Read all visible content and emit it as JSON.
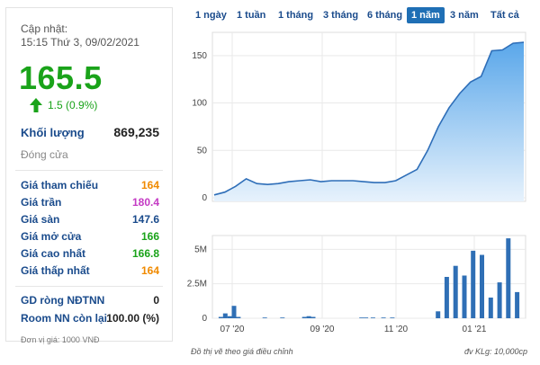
{
  "stock": {
    "updated_label": "Cập nhật:",
    "updated_time": "15:15 Thứ 3, 09/02/2021",
    "price": "165.5",
    "change": "1.5 (0.9%)",
    "volume_label": "Khối lượng",
    "volume_value": "869,235",
    "close_label": "Đóng cửa",
    "price_unit_note": "Đơn vị giá: 1000 VNĐ"
  },
  "details": [
    {
      "label": "Giá tham chiếu",
      "value": "164",
      "color": "#f08a00"
    },
    {
      "label": "Giá trần",
      "value": "180.4",
      "color": "#c43bc4"
    },
    {
      "label": "Giá sàn",
      "value": "147.6",
      "color": "#1a4b8c"
    },
    {
      "label": "Giá mở cửa",
      "value": "166",
      "color": "#1aa31a"
    },
    {
      "label": "Giá cao nhất",
      "value": "166.8",
      "color": "#1aa31a"
    },
    {
      "label": "Giá thấp nhất",
      "value": "164",
      "color": "#f08a00"
    }
  ],
  "foreign": [
    {
      "label": "GD ròng NĐTNN",
      "value": "0",
      "color": "#222222"
    },
    {
      "label": "Room NN còn lại",
      "value": "100.00 (%)",
      "color": "#222222"
    }
  ],
  "tabs": {
    "items": [
      "1 ngày",
      "1 tuần",
      "1 tháng",
      "3 tháng",
      "6 tháng",
      "1 năm",
      "3 năm",
      "Tất cả"
    ],
    "active": "1 năm"
  },
  "footer": {
    "note": "Đồ thị vẽ theo giá điều chỉnh",
    "volume_unit": "đv KLg: 10,000cp"
  },
  "colors": {
    "line": "#2e6eb8",
    "area_top": "#5aa7ea",
    "area_bottom": "#e7f2fc",
    "bar": "#2f6fb5",
    "grid": "#e9e9e9"
  },
  "chart_data": [
    {
      "type": "area",
      "y_ticks": [
        "0",
        "50",
        "100",
        "150"
      ],
      "ylim": [
        0,
        165
      ],
      "points": [
        [
          0,
          3
        ],
        [
          6,
          6
        ],
        [
          12,
          12
        ],
        [
          18,
          20
        ],
        [
          24,
          15
        ],
        [
          30,
          14
        ],
        [
          36,
          15
        ],
        [
          42,
          17
        ],
        [
          48,
          18
        ],
        [
          54,
          19
        ],
        [
          60,
          17
        ],
        [
          66,
          18
        ],
        [
          72,
          18
        ],
        [
          78,
          18
        ],
        [
          84,
          17
        ],
        [
          90,
          16
        ],
        [
          96,
          16
        ],
        [
          102,
          18
        ],
        [
          108,
          24
        ],
        [
          114,
          30
        ],
        [
          120,
          50
        ],
        [
          126,
          75
        ],
        [
          132,
          95
        ],
        [
          138,
          110
        ],
        [
          144,
          122
        ],
        [
          150,
          128
        ],
        [
          156,
          155
        ],
        [
          162,
          156
        ],
        [
          168,
          163
        ],
        [
          174,
          164
        ]
      ],
      "x_ticks": [
        "07 '20",
        "09 '20",
        "11 '20",
        "01 '21"
      ]
    },
    {
      "type": "bar",
      "y_ticks": [
        "0",
        "2.5M",
        "5M"
      ],
      "ylim": [
        0,
        6
      ],
      "bars": [
        [
          5,
          0.1
        ],
        [
          10,
          0.35
        ],
        [
          15,
          0.15
        ],
        [
          20,
          0.9
        ],
        [
          25,
          0.1
        ],
        [
          55,
          0.05
        ],
        [
          75,
          0.05
        ],
        [
          100,
          0.1
        ],
        [
          105,
          0.15
        ],
        [
          110,
          0.1
        ],
        [
          165,
          0.05
        ],
        [
          170,
          0.05
        ],
        [
          178,
          0.05
        ],
        [
          190,
          0.05
        ],
        [
          200,
          0.05
        ],
        [
          252,
          0.5
        ],
        [
          262,
          3.0
        ],
        [
          272,
          3.8
        ],
        [
          282,
          3.1
        ],
        [
          292,
          4.9
        ],
        [
          302,
          4.6
        ],
        [
          312,
          1.5
        ],
        [
          322,
          2.6
        ],
        [
          332,
          5.8
        ],
        [
          342,
          1.9
        ]
      ],
      "x_ticks": [
        "07 '20",
        "09 '20",
        "11 '20",
        "01 '21"
      ]
    }
  ]
}
